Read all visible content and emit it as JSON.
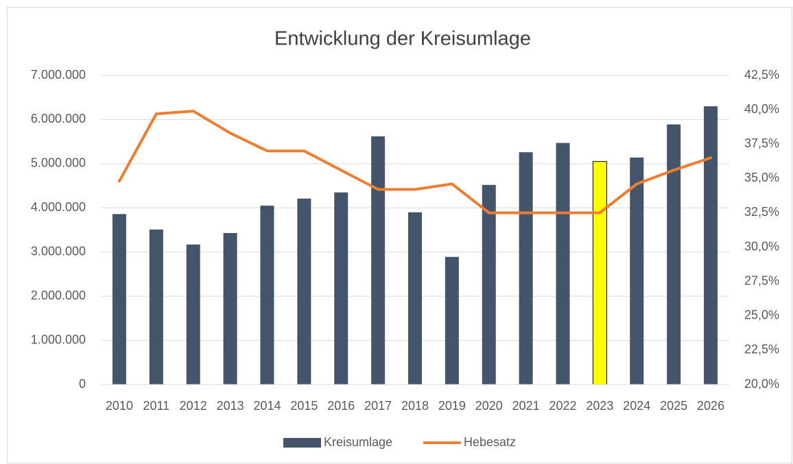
{
  "chart_data": {
    "type": "bar_line",
    "title": "Entwicklung der Kreisumlage",
    "categories": [
      "2010",
      "2011",
      "2012",
      "2013",
      "2014",
      "2015",
      "2016",
      "2017",
      "2018",
      "2019",
      "2020",
      "2021",
      "2022",
      "2023",
      "2024",
      "2025",
      "2026"
    ],
    "series": [
      {
        "name": "Kreisumlage",
        "type": "bar",
        "color": "#44546a",
        "colors": [
          "#44546a",
          "#44546a",
          "#44546a",
          "#44546a",
          "#44546a",
          "#44546a",
          "#44546a",
          "#44546a",
          "#44546a",
          "#44546a",
          "#44546a",
          "#44546a",
          "#44546a",
          "#ffff00",
          "#44546a",
          "#44546a",
          "#44546a"
        ],
        "edgecolors": [
          null,
          null,
          null,
          null,
          null,
          null,
          null,
          null,
          null,
          null,
          null,
          null,
          null,
          "#000000",
          null,
          null,
          null
        ],
        "values": [
          3860000,
          3510000,
          3170000,
          3430000,
          4050000,
          4210000,
          4350000,
          5620000,
          3900000,
          2890000,
          4520000,
          5260000,
          5470000,
          5050000,
          5140000,
          5890000,
          6300000
        ]
      },
      {
        "name": "Hebesatz",
        "type": "line",
        "axis": "y2",
        "color": "#ed7d31",
        "values": [
          34.8,
          39.7,
          39.9,
          38.3,
          37.0,
          37.0,
          35.6,
          34.2,
          34.2,
          34.6,
          32.5,
          32.5,
          32.5,
          32.5,
          34.6,
          35.6,
          36.5
        ]
      }
    ],
    "ylim": [
      0,
      7000000
    ],
    "yticks": [
      0,
      {
        "value": 1000000,
        "label": "1.000.000"
      },
      {
        "value": 2000000,
        "label": "2.000.000"
      },
      {
        "value": 3000000,
        "label": "3.000.000"
      },
      {
        "value": 4000000,
        "label": "4.000.000"
      },
      {
        "value": 5000000,
        "label": "5.000.000"
      },
      {
        "value": 6000000,
        "label": "6.000.000"
      },
      {
        "value": 7000000,
        "label": "7.000.000"
      }
    ],
    "y2lim": [
      20,
      42.5
    ],
    "y2ticks": [
      {
        "value": 20,
        "label": "20,0%"
      },
      {
        "value": 22.5,
        "label": "22,5%"
      },
      {
        "value": 25,
        "label": "25,0%"
      },
      {
        "value": 27.5,
        "label": "27,5%"
      },
      {
        "value": 30,
        "label": "30,0%"
      },
      {
        "value": 32.5,
        "label": "32,5%"
      },
      {
        "value": 35,
        "label": "35,0%"
      },
      {
        "value": 37.5,
        "label": "37,5%"
      },
      {
        "value": 40,
        "label": "40,0%"
      },
      {
        "value": 42.5,
        "label": "42,5%"
      }
    ],
    "grid": true,
    "legend": "bottom"
  }
}
